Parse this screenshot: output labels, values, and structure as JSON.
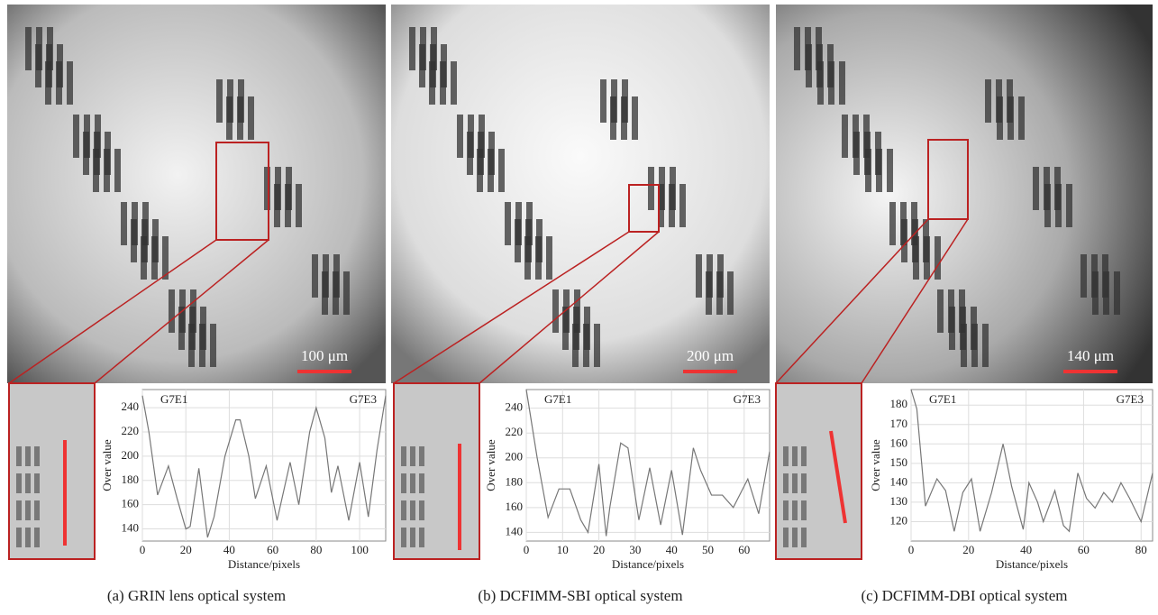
{
  "chart_data": [
    {
      "type": "line",
      "caption": "(a) GRIN lens optical system",
      "scale_label": "100 μm",
      "xlabel": "Distance/pixels",
      "ylabel": "Over value",
      "annotations": [
        "G7E1",
        "G7E3"
      ],
      "color": "#777777",
      "grid": true,
      "x": [
        0,
        3,
        7,
        12,
        16,
        20,
        22,
        26,
        30,
        33,
        38,
        43,
        45,
        49,
        52,
        57,
        62,
        68,
        72,
        77,
        80,
        84,
        87,
        90,
        95,
        100,
        104,
        108,
        112
      ],
      "values": [
        250,
        220,
        168,
        192,
        165,
        140,
        142,
        190,
        133,
        150,
        200,
        230,
        230,
        200,
        165,
        192,
        147,
        195,
        160,
        220,
        240,
        215,
        170,
        192,
        147,
        195,
        150,
        205,
        250
      ],
      "xlim": [
        0,
        112
      ],
      "ylim": [
        130,
        255
      ],
      "xticks": [
        0,
        20,
        40,
        60,
        80,
        100
      ],
      "yticks": [
        140,
        160,
        180,
        200,
        220,
        240
      ]
    },
    {
      "type": "line",
      "caption": "(b) DCFIMM-SBI optical system",
      "scale_label": "200 μm",
      "xlabel": "Distance/pixels",
      "ylabel": "Over value",
      "annotations": [
        "G7E1",
        "G7E3"
      ],
      "color": "#777777",
      "grid": true,
      "x": [
        0,
        3,
        6,
        9,
        12,
        15,
        17,
        20,
        22,
        23,
        26,
        28,
        31,
        34,
        37,
        40,
        43,
        46,
        48,
        51,
        54,
        57,
        61,
        64,
        67
      ],
      "values": [
        255,
        200,
        152,
        175,
        175,
        150,
        140,
        195,
        137,
        160,
        212,
        208,
        150,
        192,
        146,
        190,
        138,
        208,
        190,
        170,
        170,
        160,
        183,
        155,
        205
      ],
      "xlim": [
        0,
        67
      ],
      "ylim": [
        133,
        255
      ],
      "xticks": [
        0,
        10,
        20,
        30,
        40,
        50,
        60
      ],
      "yticks": [
        140,
        160,
        180,
        200,
        220,
        240
      ]
    },
    {
      "type": "line",
      "caption": "(c) DCFIMM-DBI optical system",
      "scale_label": "140 μm",
      "xlabel": "Distance/pixels",
      "ylabel": "Over value",
      "annotations": [
        "G7E1",
        "G7E3"
      ],
      "color": "#777777",
      "grid": true,
      "x": [
        0,
        2,
        5,
        9,
        12,
        15,
        18,
        21,
        24,
        28,
        32,
        35,
        39,
        41,
        44,
        46,
        50,
        53,
        55,
        58,
        61,
        64,
        67,
        70,
        73,
        76,
        80,
        84
      ],
      "values": [
        188,
        178,
        128,
        142,
        136,
        115,
        135,
        142,
        115,
        135,
        160,
        138,
        116,
        140,
        130,
        120,
        136,
        118,
        115,
        145,
        132,
        127,
        135,
        130,
        140,
        132,
        120,
        145
      ],
      "xlim": [
        0,
        84
      ],
      "ylim": [
        110,
        188
      ],
      "xticks": [
        0,
        20,
        40,
        60,
        80
      ],
      "yticks": [
        120,
        130,
        140,
        150,
        160,
        170,
        180
      ]
    }
  ]
}
